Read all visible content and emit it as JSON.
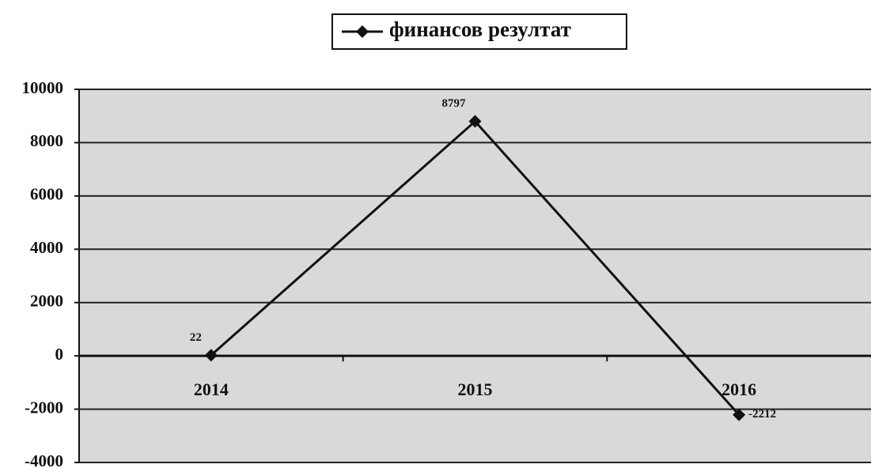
{
  "chart_data": {
    "type": "line",
    "categories": [
      "2014",
      "2015",
      "2016"
    ],
    "series": [
      {
        "name": "финансов резултат",
        "color": "#111111",
        "values": [
          22,
          8797,
          -2212
        ]
      }
    ],
    "ylim": [
      -4000,
      10000
    ],
    "yticks": [
      -4000,
      -2000,
      0,
      2000,
      4000,
      6000,
      8000,
      10000
    ],
    "grid": true,
    "legend": "top"
  }
}
